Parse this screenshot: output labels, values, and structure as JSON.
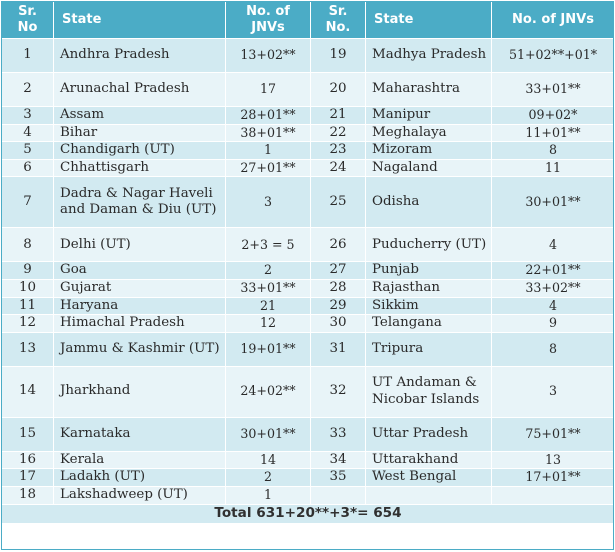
{
  "headers": {
    "sr_no": "Sr. No",
    "state": "State",
    "jnvs": "No. of JNVs",
    "sr_no2": "Sr. No.",
    "state2": "State",
    "jnvs2": "No. of JNVs"
  },
  "rows": [
    {
      "no1": "1",
      "state1": "Andhra Pradesh",
      "jnv1": "13+02**",
      "no2": "19",
      "state2": "Madhya Pradesh",
      "jnv2": "51+02**+01*"
    },
    {
      "no1": "2",
      "state1": "Arunachal Pradesh",
      "jnv1": "17",
      "no2": "20",
      "state2": "Maharashtra",
      "jnv2": "33+01**"
    },
    {
      "no1": "3",
      "state1": "Assam",
      "jnv1": "28+01**",
      "no2": "21",
      "state2": "Manipur",
      "jnv2": "09+02*"
    },
    {
      "no1": "4",
      "state1": "Bihar",
      "jnv1": "38+01**",
      "no2": "22",
      "state2": "Meghalaya",
      "jnv2": "11+01**"
    },
    {
      "no1": "5",
      "state1": "Chandigarh (UT)",
      "jnv1": "1",
      "no2": "23",
      "state2": "Mizoram",
      "jnv2": "8"
    },
    {
      "no1": "6",
      "state1": "Chhattisgarh",
      "jnv1": "27+01**",
      "no2": "24",
      "state2": "Nagaland",
      "jnv2": "11"
    },
    {
      "no1": "7",
      "state1": "Dadra & Nagar Haveli and Daman & Diu (UT)",
      "jnv1": "3",
      "no2": "25",
      "state2": "Odisha",
      "jnv2": "30+01**"
    },
    {
      "no1": "8",
      "state1": "Delhi (UT)",
      "jnv1": "2+3 = 5",
      "no2": "26",
      "state2": "Puducherry (UT)",
      "jnv2": "4"
    },
    {
      "no1": "9",
      "state1": "Goa",
      "jnv1": "2",
      "no2": "27",
      "state2": "Punjab",
      "jnv2": "22+01**"
    },
    {
      "no1": "10",
      "state1": "Gujarat",
      "jnv1": "33+01**",
      "no2": "28",
      "state2": "Rajasthan",
      "jnv2": "33+02**"
    },
    {
      "no1": "11",
      "state1": "Haryana",
      "jnv1": "21",
      "no2": "29",
      "state2": "Sikkim",
      "jnv2": "4"
    },
    {
      "no1": "12",
      "state1": "Himachal Pradesh",
      "jnv1": "12",
      "no2": "30",
      "state2": "Telangana",
      "jnv2": "9"
    },
    {
      "no1": "13",
      "state1": "Jammu & Kashmir (UT)",
      "jnv1": "19+01**",
      "no2": "31",
      "state2": "Tripura",
      "jnv2": "8"
    },
    {
      "no1": "14",
      "state1": "Jharkhand",
      "jnv1": "24+02**",
      "no2": "32",
      "state2": "UT Andaman & Nicobar Islands",
      "jnv2": "3"
    },
    {
      "no1": "15",
      "state1": "Karnataka",
      "jnv1": "30+01**",
      "no2": "33",
      "state2": "Uttar Pradesh",
      "jnv2": "75+01**"
    },
    {
      "no1": "16",
      "state1": "Kerala",
      "jnv1": "14",
      "no2": "34",
      "state2": "Uttarakhand",
      "jnv2": "13"
    },
    {
      "no1": "17",
      "state1": "Ladakh (UT)",
      "jnv1": "2",
      "no2": "35",
      "state2": "West Bengal",
      "jnv2": "17+01**"
    },
    {
      "no1": "18",
      "state1": "Lakshadweep (UT)",
      "jnv1": "1",
      "no2": "",
      "state2": "",
      "jnv2": ""
    }
  ],
  "total": "Total 631+20**+3*= 654"
}
